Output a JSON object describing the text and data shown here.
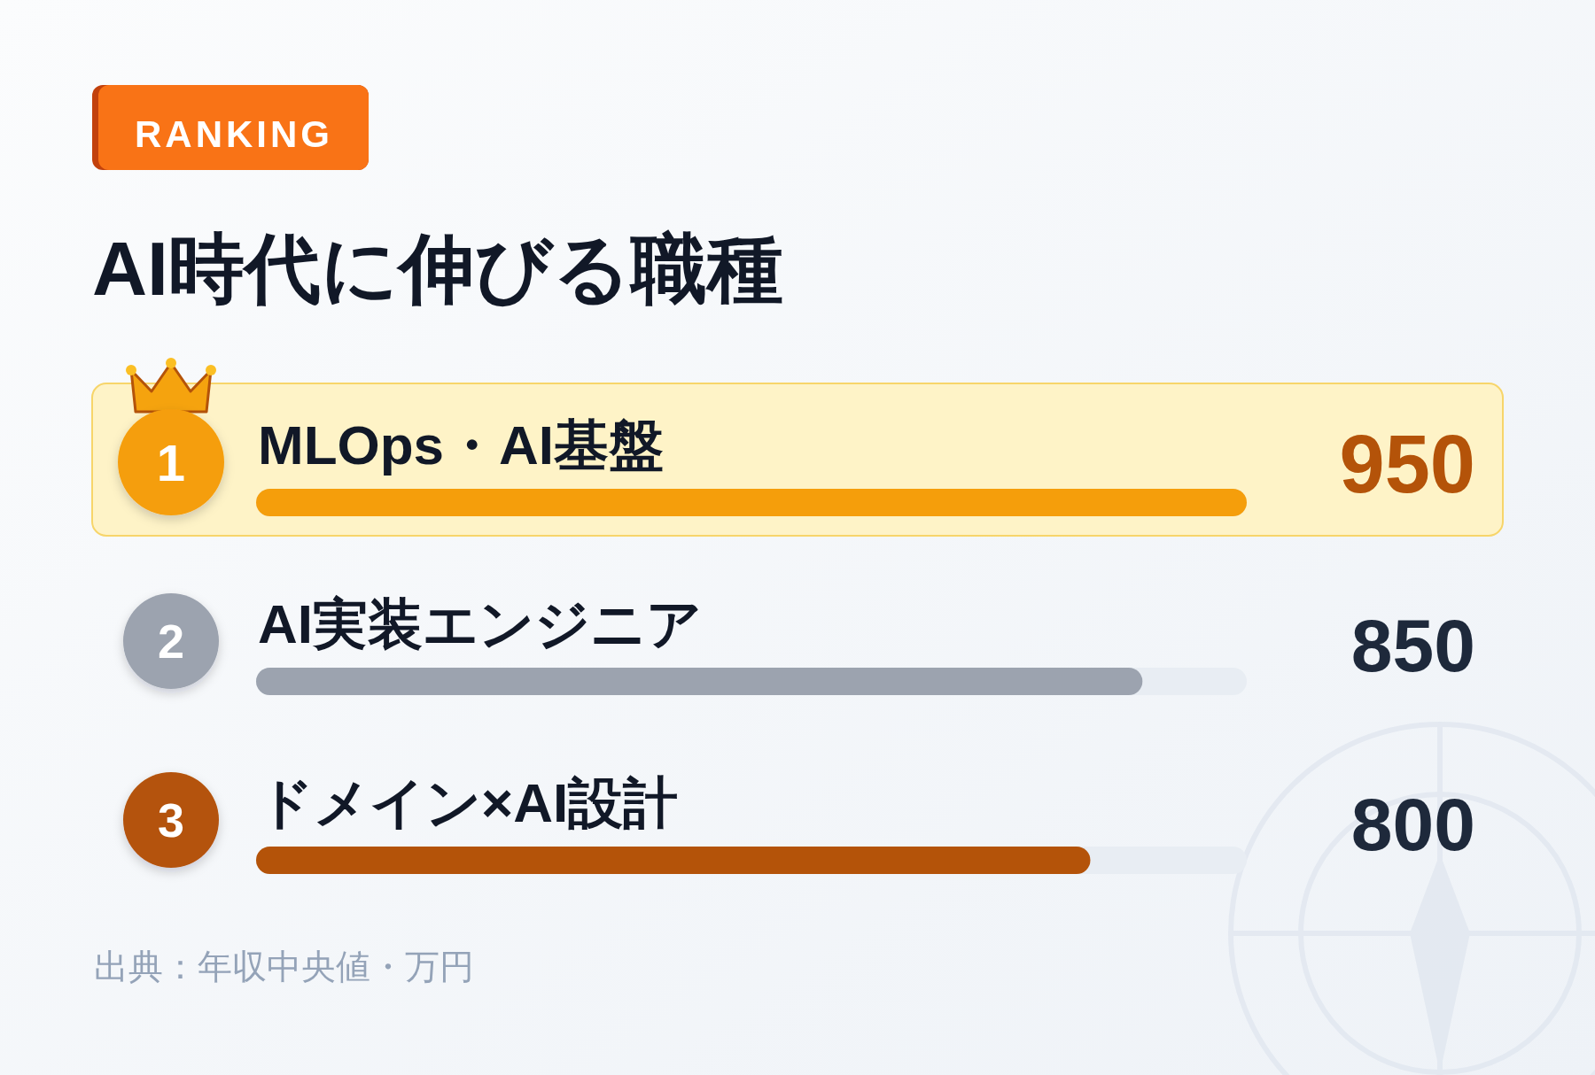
{
  "chart_data": {
    "type": "bar",
    "orientation": "horizontal",
    "subtitle": "RANKING",
    "title": "AI時代に伸びる職種",
    "categories": [
      "MLOps・AI基盤",
      "AI実装エンジニア",
      "ドメイン×AI設計"
    ],
    "values": [
      950,
      850,
      800
    ],
    "colors": [
      "#f59e0b",
      "#9ca3af",
      "#b45309"
    ],
    "data_labels": true,
    "bands": [
      {
        "axis": "y",
        "from": "MLOps・AI基盤",
        "to": "MLOps・AI基盤",
        "color": "#fef3c7"
      }
    ],
    "annotations": [
      "1",
      "2",
      "3",
      "出典：年収中央値・万円"
    ]
  }
}
